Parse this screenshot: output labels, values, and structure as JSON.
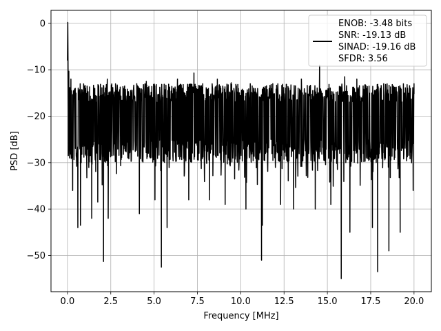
{
  "chart_data": {
    "type": "line",
    "title": "",
    "xlabel": "Frequency [MHz]",
    "ylabel": "PSD [dB]",
    "xlim": [
      -0.95,
      21.0
    ],
    "ylim": [
      -57.8,
      2.8
    ],
    "xticks": [
      0.0,
      2.5,
      5.0,
      7.5,
      10.0,
      12.5,
      15.0,
      17.5,
      20.0
    ],
    "xtick_labels": [
      "0.0",
      "2.5",
      "5.0",
      "7.5",
      "10.0",
      "12.5",
      "15.0",
      "17.5",
      "20.0"
    ],
    "yticks": [
      0,
      -10,
      -20,
      -30,
      -40,
      -50
    ],
    "ytick_labels": [
      "0",
      "−10",
      "−20",
      "−30",
      "−40",
      "−50"
    ],
    "grid": true,
    "legend_position": "top-right",
    "series": [
      {
        "name": "ENOB: -3.48 bits\nSNR: -19.13 dB\nSINAD: -19.16 dB\nSFDR: 3.56",
        "color": "#000000",
        "noise_band": {
          "upper": -13,
          "lower": -30,
          "mean": -21
        },
        "x": [
          0.0,
          0.02,
          0.05,
          0.08,
          0.12,
          0.2,
          0.3,
          0.45,
          0.6,
          0.62,
          0.75,
          0.95,
          1.4,
          1.75,
          2.08,
          2.3,
          2.35,
          3.3,
          4.15,
          4.55,
          5.05,
          5.42,
          5.75,
          6.35,
          7.0,
          7.3,
          8.2,
          8.65,
          9.1,
          9.45,
          10.3,
          10.55,
          11.2,
          11.25,
          11.85,
          12.3,
          13.05,
          13.5,
          14.3,
          14.55,
          15.2,
          15.8,
          16.0,
          16.3,
          16.7,
          17.6,
          17.9,
          18.25,
          18.55,
          19.2,
          19.95,
          20.0
        ],
        "y": [
          -8,
          0.2,
          -19,
          -10.3,
          -29,
          -12,
          -36,
          -14,
          -44,
          -15,
          -43.5,
          -14,
          -42,
          -38.5,
          -51.3,
          -12,
          -42,
          -13.5,
          -41,
          -12.5,
          -38,
          -52.5,
          -44,
          -12,
          -38,
          -10.7,
          -38,
          -12,
          -39,
          -12.8,
          -40,
          -13,
          -51,
          -43.5,
          -13,
          -39,
          -40,
          -12,
          -40,
          -9,
          -39,
          -55,
          -11.5,
          -45,
          -12,
          -44,
          -53.5,
          -13,
          -49,
          -45,
          -36,
          -13
        ]
      }
    ]
  }
}
